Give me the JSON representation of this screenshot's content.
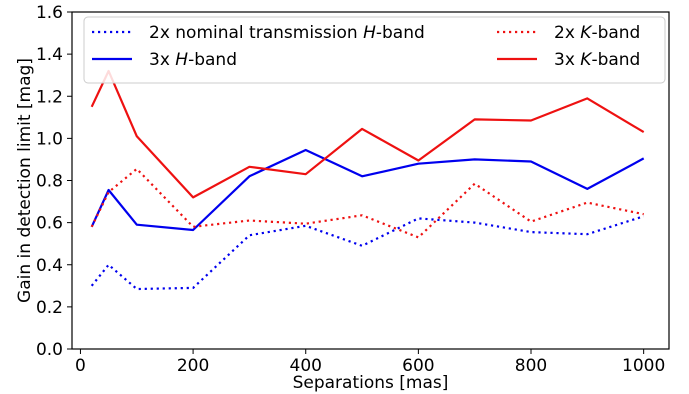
{
  "chart_data": {
    "type": "line",
    "xlabel": "Separations [mas]",
    "ylabel": "Gain in detection limit [mag]",
    "xlim": [
      -15,
      1045
    ],
    "ylim": [
      0.0,
      1.6
    ],
    "xticks": [
      0,
      200,
      400,
      600,
      800,
      1000
    ],
    "yticks": [
      0.0,
      0.2,
      0.4,
      0.6,
      0.8,
      1.0,
      1.2,
      1.4,
      1.6
    ],
    "x": [
      20,
      50,
      100,
      200,
      300,
      400,
      500,
      600,
      700,
      800,
      900,
      1000
    ],
    "grid": false,
    "legend_position": "top",
    "series": [
      {
        "name_parts": [
          "2x nominal transmission ",
          "H",
          "-band"
        ],
        "color": "#0000ee",
        "style": "dotted",
        "values": [
          0.3,
          0.4,
          0.285,
          0.29,
          0.54,
          0.585,
          0.49,
          0.62,
          0.6,
          0.555,
          0.545,
          0.63
        ]
      },
      {
        "name_parts": [
          "3x ",
          "H",
          "-band"
        ],
        "color": "#0000ee",
        "style": "solid",
        "values": [
          0.58,
          0.755,
          0.59,
          0.565,
          0.82,
          0.945,
          0.82,
          0.88,
          0.9,
          0.89,
          0.76,
          0.905
        ]
      },
      {
        "name_parts": [
          "2x ",
          "K",
          "-band"
        ],
        "color": "#ee1111",
        "style": "dotted",
        "values": [
          0.58,
          0.745,
          0.855,
          0.58,
          0.61,
          0.595,
          0.635,
          0.53,
          0.785,
          0.605,
          0.695,
          0.64
        ]
      },
      {
        "name_parts": [
          "3x ",
          "K",
          "-band"
        ],
        "color": "#ee1111",
        "style": "solid",
        "values": [
          1.15,
          1.32,
          1.01,
          0.72,
          0.865,
          0.83,
          1.045,
          0.895,
          1.09,
          1.085,
          1.19,
          1.03
        ]
      }
    ]
  }
}
